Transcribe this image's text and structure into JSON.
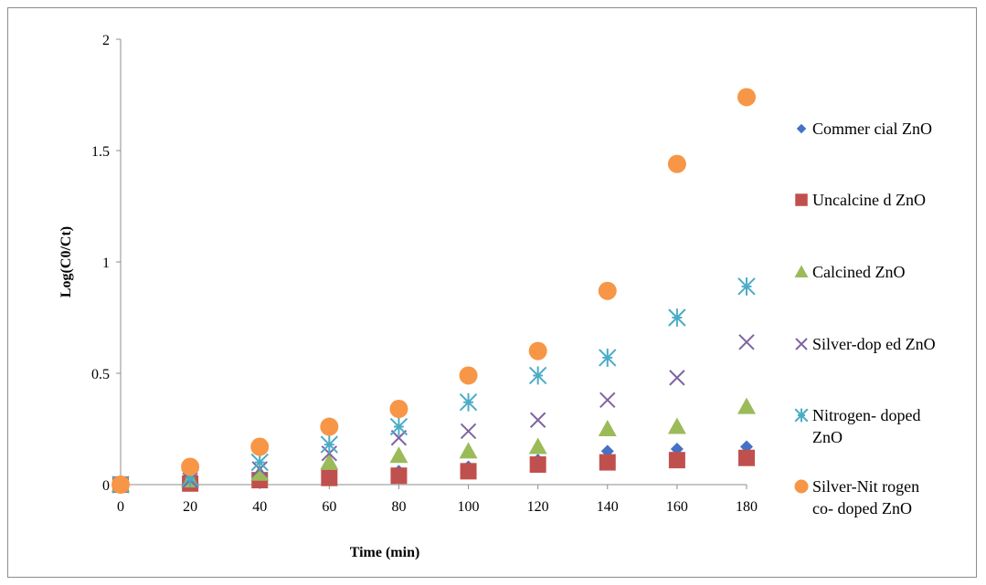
{
  "chart_data": {
    "type": "scatter",
    "xlabel": "Time (min)",
    "ylabel": "Log(C0/Ct)",
    "xlim": [
      0,
      180
    ],
    "ylim": [
      0,
      2
    ],
    "x_ticks": [
      "0",
      "20",
      "40",
      "60",
      "80",
      "100",
      "120",
      "140",
      "160",
      "180"
    ],
    "y_ticks": [
      "0",
      "0.5",
      "1",
      "1.5",
      "2"
    ],
    "grid": false,
    "legend_position": "right",
    "x": [
      0,
      20,
      40,
      60,
      80,
      100,
      120,
      140,
      160,
      180
    ],
    "series": [
      {
        "name": "Commer cial ZnO",
        "legend_lines": [
          "Commer cial ZnO"
        ],
        "marker": "diamond",
        "color": "#4472C4",
        "values": [
          0,
          0.01,
          0.03,
          0.04,
          0.06,
          0.08,
          0.11,
          0.15,
          0.16,
          0.17
        ]
      },
      {
        "name": "Uncalcine d ZnO",
        "legend_lines": [
          "Uncalcine d ZnO"
        ],
        "marker": "square",
        "color": "#C0504D",
        "values": [
          0,
          0.005,
          0.02,
          0.03,
          0.04,
          0.06,
          0.09,
          0.1,
          0.11,
          0.12
        ]
      },
      {
        "name": "Calcined ZnO",
        "legend_lines": [
          "Calcined ZnO"
        ],
        "marker": "triangle",
        "color": "#9BBB59",
        "values": [
          0,
          0.02,
          0.05,
          0.1,
          0.13,
          0.15,
          0.17,
          0.25,
          0.26,
          0.35
        ]
      },
      {
        "name": "Silver-dop ed ZnO",
        "legend_lines": [
          "Silver-dop ed ZnO"
        ],
        "marker": "x",
        "color": "#8064A2",
        "values": [
          0,
          0.02,
          0.07,
          0.14,
          0.21,
          0.24,
          0.29,
          0.38,
          0.48,
          0.64
        ]
      },
      {
        "name": "Nitrogen- doped ZnO",
        "legend_lines": [
          "Nitrogen- doped",
          "ZnO"
        ],
        "marker": "star",
        "color": "#4BACC6",
        "values": [
          0,
          0.03,
          0.1,
          0.18,
          0.26,
          0.37,
          0.49,
          0.57,
          0.75,
          0.89
        ]
      },
      {
        "name": "Silver-Nit rogen co- doped  ZnO",
        "legend_lines": [
          "Silver-Nit rogen",
          "co- doped  ZnO"
        ],
        "marker": "circle",
        "color": "#F79646",
        "values": [
          0,
          0.08,
          0.17,
          0.26,
          0.34,
          0.49,
          0.6,
          0.87,
          1.44,
          1.74
        ]
      }
    ]
  }
}
